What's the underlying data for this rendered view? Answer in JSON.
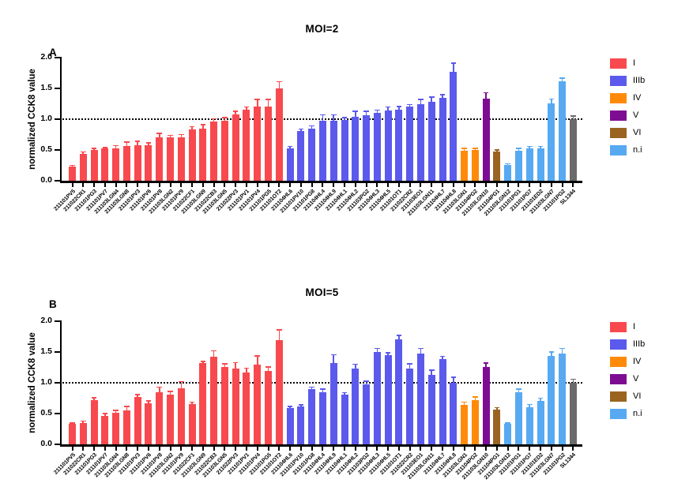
{
  "colors": {
    "I": "#F8494E",
    "IIIb": "#5B5AEC",
    "IV": "#FF8A0A",
    "V": "#7E0C93",
    "VI": "#9A6420",
    "n.i": "#57A9F2",
    "control": "#6A6A6A"
  },
  "legend": {
    "position": "right",
    "entries": [
      {
        "label": "I",
        "color": "#F8494E"
      },
      {
        "label": "IIIb",
        "color": "#5B5AEC"
      },
      {
        "label": "IV",
        "color": "#FF8A0A"
      },
      {
        "label": "V",
        "color": "#7E0C93"
      },
      {
        "label": "VI",
        "color": "#9A6420"
      },
      {
        "label": "n.i",
        "color": "#57A9F2"
      }
    ]
  },
  "chart_data": [
    {
      "type": "bar",
      "panel_label": "A",
      "title": "MOI=2",
      "xlabel": "",
      "ylabel": "normalized CCK8 value",
      "ylim": [
        0,
        2.0
      ],
      "yticks": [
        0.0,
        0.5,
        1.0,
        1.5,
        2.0
      ],
      "reference_line": 1.0,
      "grid": false,
      "error_bars": "upper",
      "categories": [
        "211101PV5",
        "211022CR1",
        "211101PG3",
        "211101PV7",
        "211103LGN4",
        "211103LGN8",
        "211101PV3",
        "211101PV6",
        "211101PV8",
        "211103LGN2",
        "211101PV9",
        "211022CF1",
        "211103LGN9",
        "211022CB3",
        "211103LGN5",
        "211022PV3",
        "211101PV1",
        "211101PV4",
        "211101PG5",
        "211101OT2",
        "211104HL6",
        "211101PV10",
        "211101PG8",
        "211104HL4",
        "211104HL9",
        "211104HL1",
        "211104HL2",
        "211103PG2",
        "211104HL3",
        "211104HL5",
        "211101OT1",
        "211022CR2",
        "211103EO1",
        "211103LGN11",
        "211104HL7",
        "211104HL8",
        "211103LGN1",
        "211104PG2",
        "211103LGN10",
        "211104PG1",
        "211103LGN12",
        "211101PG1",
        "211101PG7",
        "211101ED2",
        "211103LGN7",
        "211101PG2",
        "SL1344"
      ],
      "groups": [
        "I",
        "I",
        "I",
        "I",
        "I",
        "I",
        "I",
        "I",
        "I",
        "I",
        "I",
        "I",
        "I",
        "I",
        "I",
        "I",
        "I",
        "I",
        "I",
        "I",
        "IIIb",
        "IIIb",
        "IIIb",
        "IIIb",
        "IIIb",
        "IIIb",
        "IIIb",
        "IIIb",
        "IIIb",
        "IIIb",
        "IIIb",
        "IIIb",
        "IIIb",
        "IIIb",
        "IIIb",
        "IIIb",
        "IV",
        "IV",
        "V",
        "VI",
        "n.i",
        "n.i",
        "n.i",
        "n.i",
        "n.i",
        "n.i",
        "control"
      ],
      "values": [
        0.23,
        0.44,
        0.5,
        0.52,
        0.53,
        0.57,
        0.58,
        0.58,
        0.7,
        0.71,
        0.71,
        0.83,
        0.85,
        0.96,
        0.97,
        1.08,
        1.16,
        1.2,
        1.21,
        1.5,
        0.52,
        0.81,
        0.85,
        0.97,
        0.98,
        0.99,
        1.04,
        1.07,
        1.1,
        1.14,
        1.16,
        1.2,
        1.25,
        1.28,
        1.34,
        1.77,
        0.49,
        0.5,
        1.33,
        0.47,
        0.26,
        0.49,
        0.52,
        0.53,
        1.26,
        1.61,
        1.0
      ],
      "errors": [
        0.01,
        0.02,
        0.02,
        0.01,
        0.03,
        0.05,
        0.05,
        0.03,
        0.06,
        0.02,
        0.03,
        0.04,
        0.05,
        0.04,
        0.05,
        0.04,
        0.03,
        0.11,
        0.1,
        0.1,
        0.03,
        0.02,
        0.03,
        0.09,
        0.08,
        0.03,
        0.08,
        0.05,
        0.04,
        0.05,
        0.04,
        0.03,
        0.06,
        0.07,
        0.05,
        0.13,
        0.03,
        0.02,
        0.09,
        0.02,
        0.01,
        0.03,
        0.03,
        0.02,
        0.06,
        0.05,
        0.04
      ]
    },
    {
      "type": "bar",
      "panel_label": "B",
      "title": "MOI=5",
      "xlabel": "",
      "ylabel": "normalized CCK8 value",
      "ylim": [
        0,
        2.0
      ],
      "yticks": [
        0.0,
        0.5,
        1.0,
        1.5,
        2.0
      ],
      "reference_line": 1.0,
      "grid": false,
      "error_bars": "upper",
      "categories": [
        "211101PV5",
        "211022CR1",
        "211101PG3",
        "211101PV7",
        "211103LGN4",
        "211103LGN8",
        "211101PV3",
        "211101PV6",
        "211101PV8",
        "211103LGN2",
        "211101PV9",
        "211022CF1",
        "211103LGN9",
        "211022CB3",
        "211103LGN5",
        "211022PV3",
        "211101PV1",
        "211101PV4",
        "211101PG5",
        "211101OT2",
        "211104HL6",
        "211101PV10",
        "211101PG8",
        "211104HL4",
        "211104HL9",
        "211104HL1",
        "211104HL2",
        "211103PG2",
        "211104HL3",
        "211104HL5",
        "211101OT1",
        "211022CR2",
        "211103EO1",
        "211103LGN11",
        "211104HL7",
        "211104HL8",
        "211103LGN1",
        "211104PG2",
        "211103LGN10",
        "211104PG1",
        "211103LGN12",
        "211101PG1",
        "211101PG7",
        "211101ED2",
        "211103LGN7",
        "211101PG2",
        "SL1344"
      ],
      "groups": [
        "I",
        "I",
        "I",
        "I",
        "I",
        "I",
        "I",
        "I",
        "I",
        "I",
        "I",
        "I",
        "I",
        "I",
        "I",
        "I",
        "I",
        "I",
        "I",
        "I",
        "IIIb",
        "IIIb",
        "IIIb",
        "IIIb",
        "IIIb",
        "IIIb",
        "IIIb",
        "IIIb",
        "IIIb",
        "IIIb",
        "IIIb",
        "IIIb",
        "IIIb",
        "IIIb",
        "IIIb",
        "IIIb",
        "IV",
        "IV",
        "V",
        "VI",
        "n.i",
        "n.i",
        "n.i",
        "n.i",
        "n.i",
        "n.i",
        "control"
      ],
      "values": [
        0.33,
        0.35,
        0.72,
        0.46,
        0.51,
        0.55,
        0.77,
        0.67,
        0.85,
        0.81,
        0.91,
        0.65,
        1.32,
        1.42,
        1.26,
        1.23,
        1.17,
        1.3,
        1.19,
        1.69,
        0.59,
        0.61,
        0.9,
        0.84,
        1.32,
        0.81,
        1.23,
        0.97,
        1.5,
        1.45,
        1.71,
        1.23,
        1.47,
        1.13,
        1.38,
        1.0,
        0.64,
        0.72,
        1.26,
        0.56,
        0.33,
        0.85,
        0.6,
        0.7,
        1.43,
        1.47,
        1.0
      ],
      "errors": [
        0.01,
        0.02,
        0.03,
        0.03,
        0.03,
        0.06,
        0.03,
        0.03,
        0.07,
        0.04,
        0.1,
        0.03,
        0.02,
        0.09,
        0.04,
        0.09,
        0.06,
        0.13,
        0.06,
        0.16,
        0.02,
        0.02,
        0.02,
        0.05,
        0.13,
        0.02,
        0.06,
        0.05,
        0.05,
        0.03,
        0.05,
        0.07,
        0.08,
        0.07,
        0.04,
        0.08,
        0.04,
        0.04,
        0.05,
        0.03,
        0.01,
        0.04,
        0.04,
        0.04,
        0.06,
        0.08,
        0.05
      ]
    }
  ]
}
